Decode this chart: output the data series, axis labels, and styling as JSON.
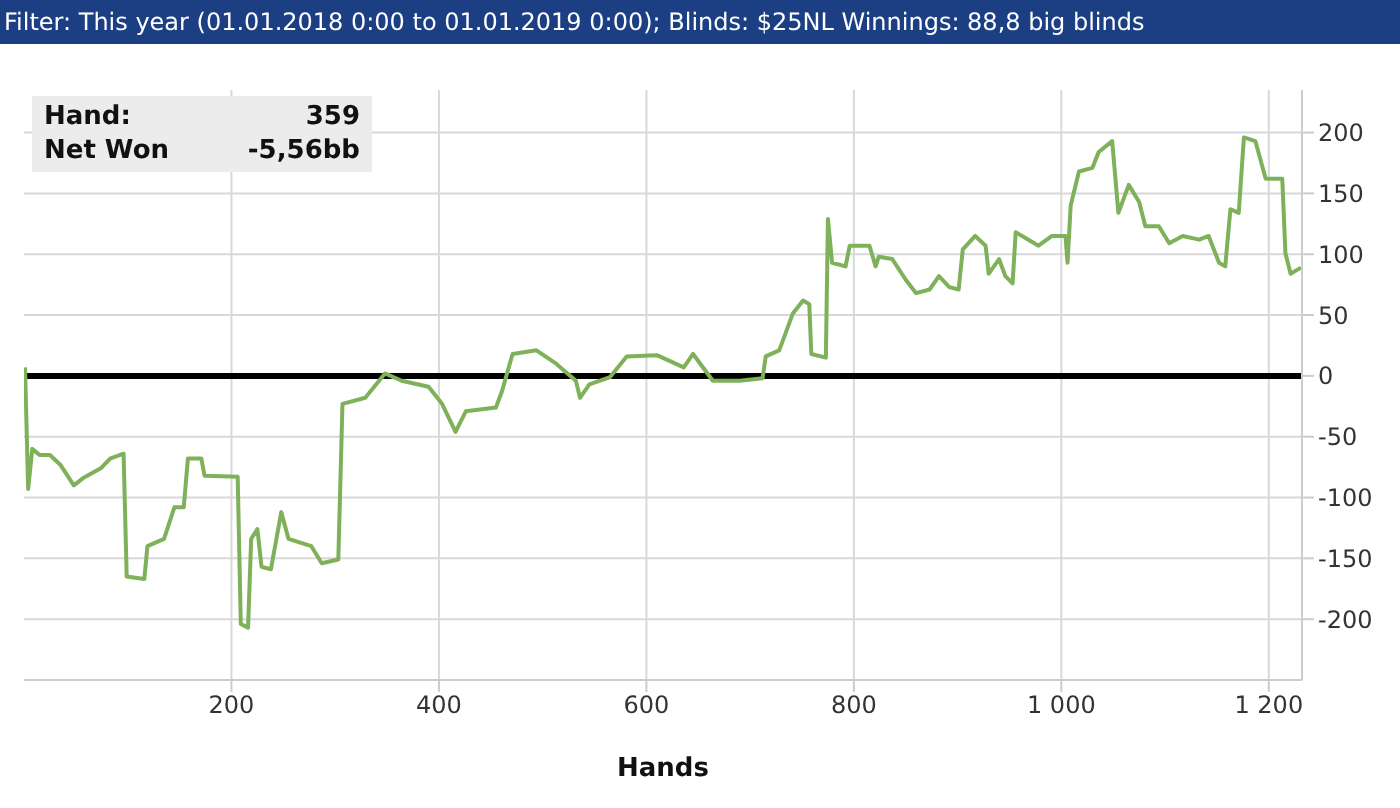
{
  "chart_data": {
    "type": "line",
    "title": "Filter: This year (01.01.2018 0:00 to 01.01.2019 0:00); Blinds: $25NL Winnings: 88,8 big blinds",
    "xlabel": "Hands",
    "annotations": [
      "Hand:",
      "359",
      "Net Won",
      "-5,56bb"
    ],
    "xlim": [
      0,
      1232
    ],
    "ylim": [
      -250,
      235
    ],
    "xticks": [
      200,
      400,
      600,
      800,
      {
        "value": 1000,
        "label": "1 000"
      },
      {
        "value": 1200,
        "label": "1 200"
      }
    ],
    "yticks": [
      -200,
      -150,
      -100,
      -50,
      0,
      50,
      100,
      150,
      200
    ],
    "grid": true,
    "marker": "none",
    "line_style": "solid",
    "ref_lines": [
      {
        "axis": "y",
        "value": 0,
        "color": "#000000"
      }
    ],
    "series": [
      {
        "color": "#7fb05a",
        "x": [
          1,
          4,
          8,
          15,
          25,
          35,
          48,
          57,
          74,
          83,
          96,
          99,
          116,
          119,
          135,
          145,
          154,
          158,
          171,
          174,
          206,
          209,
          216,
          219,
          225,
          229,
          238,
          248,
          255,
          277,
          287,
          303,
          307,
          329,
          348,
          364,
          390,
          403,
          416,
          426,
          455,
          461,
          471,
          494,
          513,
          532,
          536,
          545,
          565,
          581,
          610,
          636,
          645,
          664,
          690,
          712,
          715,
          728,
          735,
          741,
          751,
          757,
          759,
          773,
          775,
          779,
          792,
          796,
          815,
          821,
          824,
          837,
          850,
          860,
          873,
          882,
          892,
          901,
          905,
          917,
          927,
          930,
          940,
          946,
          953,
          956,
          978,
          991,
          1004,
          1006,
          1009,
          1017,
          1030,
          1036,
          1049,
          1055,
          1065,
          1075,
          1081,
          1094,
          1104,
          1117,
          1133,
          1142,
          1152,
          1158,
          1163,
          1171,
          1176,
          1187,
          1197,
          1213,
          1216,
          1221,
          1231
        ],
        "values": [
          7,
          -93,
          -60,
          -65,
          -65,
          -73,
          -90,
          -84,
          -76,
          -68,
          -64,
          -165,
          -167,
          -140,
          -134,
          -108,
          -108,
          -68,
          -68,
          -82,
          -83,
          -204,
          -207,
          -134,
          -126,
          -157,
          -159,
          -112,
          -134,
          -140,
          -154,
          -151,
          -23,
          -18,
          2,
          -4,
          -9,
          -23,
          -46,
          -29,
          -26,
          -12,
          18,
          21,
          10,
          -4,
          -18,
          -7,
          -1,
          16,
          17,
          7,
          18,
          -4,
          -4,
          -2,
          16,
          21,
          37,
          51,
          62,
          59,
          18,
          15,
          129,
          93,
          90,
          107,
          107,
          90,
          98,
          96,
          79,
          68,
          71,
          82,
          73,
          71,
          104,
          115,
          107,
          84,
          96,
          82,
          76,
          118,
          107,
          115,
          115,
          93,
          140,
          168,
          171,
          184,
          193,
          134,
          157,
          143,
          123,
          123,
          109,
          115,
          112,
          115,
          93,
          90,
          137,
          134,
          196,
          193,
          162,
          162,
          101,
          84,
          89
        ]
      }
    ]
  }
}
